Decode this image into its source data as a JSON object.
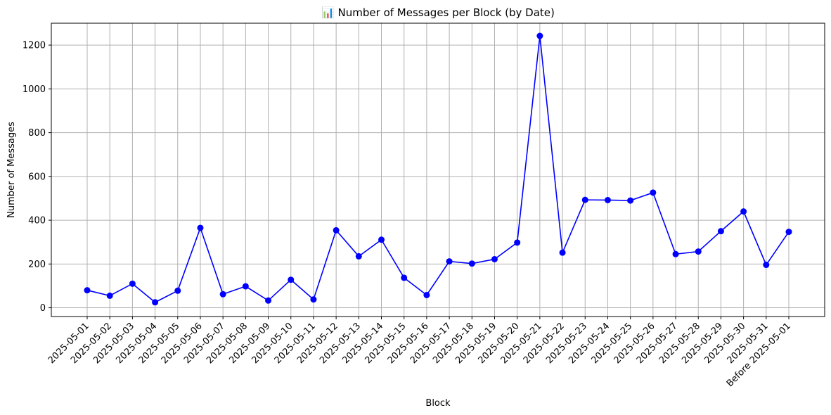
{
  "chart_data": {
    "type": "line",
    "title": "📊 Number of Messages per Block (by Date)",
    "xlabel": "Block",
    "ylabel": "Number of Messages",
    "categories": [
      "2025-05-01",
      "2025-05-02",
      "2025-05-03",
      "2025-05-04",
      "2025-05-05",
      "2025-05-06",
      "2025-05-07",
      "2025-05-08",
      "2025-05-09",
      "2025-05-10",
      "2025-05-11",
      "2025-05-12",
      "2025-05-13",
      "2025-05-14",
      "2025-05-15",
      "2025-05-16",
      "2025-05-17",
      "2025-05-18",
      "2025-05-19",
      "2025-05-20",
      "2025-05-21",
      "2025-05-22",
      "2025-05-23",
      "2025-05-24",
      "2025-05-25",
      "2025-05-26",
      "2025-05-27",
      "2025-05-28",
      "2025-05-29",
      "2025-05-30",
      "2025-05-31",
      "Before 2025-05-01"
    ],
    "values": [
      80,
      55,
      110,
      25,
      78,
      365,
      62,
      98,
      33,
      128,
      38,
      354,
      235,
      311,
      137,
      58,
      212,
      202,
      222,
      298,
      1242,
      252,
      493,
      492,
      490,
      526,
      245,
      257,
      350,
      440,
      196,
      347
    ],
    "ylim": [
      -40,
      1300
    ],
    "yticks": [
      0,
      200,
      400,
      600,
      800,
      1000,
      1200
    ],
    "grid": true,
    "line_color": "#0000ff",
    "marker": "circle"
  }
}
